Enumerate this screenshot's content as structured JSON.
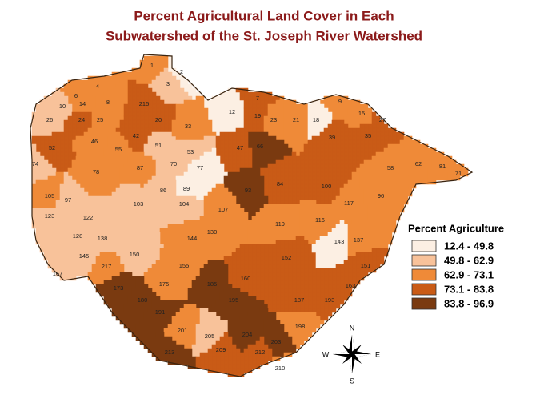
{
  "title": [
    "Percent Agricultural Land  Cover in Each",
    "Subwatershed of the St. Joseph River Watershed"
  ],
  "legend": {
    "title": "Percent Agriculture",
    "classes": [
      {
        "label": "12.4 - 49.8",
        "color": "#fcefe3"
      },
      {
        "label": "49.8 - 62.9",
        "color": "#f8c29a"
      },
      {
        "label": "62.9 - 73.1",
        "color": "#ef8a38"
      },
      {
        "label": "73.1 - 83.8",
        "color": "#c95b16"
      },
      {
        "label": "83.8 - 96.9",
        "color": "#7a3a10"
      }
    ]
  },
  "compass": {
    "n": "N",
    "s": "S",
    "e": "E",
    "w": "W"
  },
  "subwatersheds": [
    {
      "label": "2",
      "class": 0
    },
    {
      "label": "1",
      "class": 2
    },
    {
      "label": "3",
      "class": 1
    },
    {
      "label": "4",
      "class": 2
    },
    {
      "label": "6",
      "class": 2
    },
    {
      "label": "14",
      "class": 2
    },
    {
      "label": "8",
      "class": 2
    },
    {
      "label": "215",
      "class": 3
    },
    {
      "label": "10",
      "class": 1
    },
    {
      "label": "26",
      "class": 1
    },
    {
      "label": "24",
      "class": 3
    },
    {
      "label": "25",
      "class": 2
    },
    {
      "label": "20",
      "class": 3
    },
    {
      "label": "12",
      "class": 0
    },
    {
      "label": "7",
      "class": 3
    },
    {
      "label": "19",
      "class": 3
    },
    {
      "label": "23",
      "class": 2
    },
    {
      "label": "21",
      "class": 2
    },
    {
      "label": "9",
      "class": 2
    },
    {
      "label": "15",
      "class": 2
    },
    {
      "label": "27",
      "class": 3
    },
    {
      "label": "18",
      "class": 0
    },
    {
      "label": "42",
      "class": 3
    },
    {
      "label": "46",
      "class": 2
    },
    {
      "label": "55",
      "class": 2
    },
    {
      "label": "51",
      "class": 1
    },
    {
      "label": "33",
      "class": 2
    },
    {
      "label": "53",
      "class": 1
    },
    {
      "label": "66",
      "class": 4
    },
    {
      "label": "47",
      "class": 3
    },
    {
      "label": "39",
      "class": 3
    },
    {
      "label": "35",
      "class": 3
    },
    {
      "label": "52",
      "class": 3
    },
    {
      "label": "74",
      "class": 1
    },
    {
      "label": "78",
      "class": 2
    },
    {
      "label": "87",
      "class": 2
    },
    {
      "label": "70",
      "class": 1
    },
    {
      "label": "77",
      "class": 0
    },
    {
      "label": "62",
      "class": 2
    },
    {
      "label": "81",
      "class": 2
    },
    {
      "label": "71",
      "class": 2
    },
    {
      "label": "58",
      "class": 2
    },
    {
      "label": "84",
      "class": 3
    },
    {
      "label": "100",
      "class": 3
    },
    {
      "label": "105",
      "class": 2
    },
    {
      "label": "97",
      "class": 1
    },
    {
      "label": "103",
      "class": 1
    },
    {
      "label": "89",
      "class": 0
    },
    {
      "label": "86",
      "class": 1
    },
    {
      "label": "93",
      "class": 4
    },
    {
      "label": "104",
      "class": 1
    },
    {
      "label": "107",
      "class": 2
    },
    {
      "label": "117",
      "class": 2
    },
    {
      "label": "96",
      "class": 2
    },
    {
      "label": "123",
      "class": 1
    },
    {
      "label": "122",
      "class": 1
    },
    {
      "label": "130",
      "class": 2
    },
    {
      "label": "119",
      "class": 2
    },
    {
      "label": "116",
      "class": 2
    },
    {
      "label": "128",
      "class": 1
    },
    {
      "label": "138",
      "class": 1
    },
    {
      "label": "144",
      "class": 2
    },
    {
      "label": "152",
      "class": 3
    },
    {
      "label": "143",
      "class": 0
    },
    {
      "label": "137",
      "class": 2
    },
    {
      "label": "145",
      "class": 1
    },
    {
      "label": "150",
      "class": 1
    },
    {
      "label": "155",
      "class": 2
    },
    {
      "label": "160",
      "class": 3
    },
    {
      "label": "151",
      "class": 3
    },
    {
      "label": "167",
      "class": 1
    },
    {
      "label": "163",
      "class": 3
    },
    {
      "label": "217",
      "class": 2
    },
    {
      "label": "175",
      "class": 2
    },
    {
      "label": "185",
      "class": 4
    },
    {
      "label": "173",
      "class": 4
    },
    {
      "label": "180",
      "class": 4
    },
    {
      "label": "191",
      "class": 4
    },
    {
      "label": "195",
      "class": 4
    },
    {
      "label": "187",
      "class": 3
    },
    {
      "label": "193",
      "class": 3
    },
    {
      "label": "198",
      "class": 2
    },
    {
      "label": "201",
      "class": 2
    },
    {
      "label": "205",
      "class": 1
    },
    {
      "label": "204",
      "class": 4
    },
    {
      "label": "213",
      "class": 4
    },
    {
      "label": "209",
      "class": 3
    },
    {
      "label": "203",
      "class": 4
    },
    {
      "label": "210",
      "class": 2
    },
    {
      "label": "212",
      "class": 3
    }
  ]
}
